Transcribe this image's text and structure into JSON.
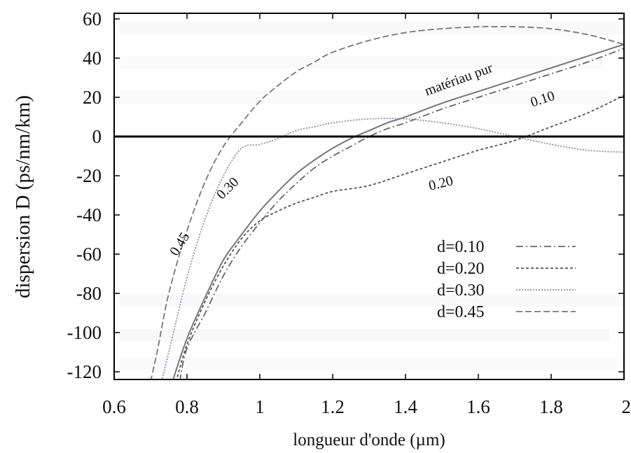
{
  "chart_data": {
    "type": "line",
    "title": "",
    "xlabel": "longueur d'onde (µm)",
    "ylabel": "dispersion D (ps/nm/km)",
    "xlim": [
      0.6,
      2.0
    ],
    "ylim": [
      -125,
      60
    ],
    "xticks": [
      "0.6",
      "0.8",
      "1",
      "1.2",
      "1.4",
      "1.6",
      "1.8",
      "2"
    ],
    "xtick_values": [
      0.6,
      0.8,
      1.0,
      1.2,
      1.4,
      1.6,
      1.8,
      2.0
    ],
    "yticks": [
      "60",
      "40",
      "20",
      "0",
      "-20",
      "-40",
      "-60",
      "-80",
      "-100",
      "-120"
    ],
    "ytick_values": [
      60,
      40,
      20,
      0,
      -20,
      -40,
      -60,
      -80,
      -100,
      -120
    ],
    "grid": false,
    "legend_position": "bottom-right",
    "zero_line": true,
    "series": [
      {
        "name": "matériau pur",
        "style": "solid",
        "color": "#777777",
        "x": [
          0.76,
          0.8,
          0.85,
          0.9,
          0.95,
          1.0,
          1.05,
          1.1,
          1.15,
          1.2,
          1.25,
          1.3,
          1.35,
          1.4,
          1.5,
          1.6,
          1.7,
          1.8,
          1.9,
          2.0
        ],
        "y": [
          -125,
          -103,
          -82,
          -63,
          -50,
          -38,
          -28,
          -19,
          -12,
          -6,
          -1,
          3,
          7,
          10,
          17,
          23,
          29,
          35,
          41,
          47
        ]
      },
      {
        "name": "d=0.10",
        "style": "dashdot",
        "color": "#666666",
        "x": [
          0.78,
          0.8,
          0.85,
          0.9,
          0.95,
          1.0,
          1.05,
          1.1,
          1.15,
          1.2,
          1.25,
          1.3,
          1.35,
          1.4,
          1.5,
          1.6,
          1.7,
          1.8,
          1.9,
          2.0
        ],
        "y": [
          -125,
          -108,
          -90,
          -71,
          -56,
          -44,
          -33,
          -24,
          -16,
          -10,
          -5,
          0,
          4,
          7,
          14,
          20,
          26,
          32,
          38,
          45
        ]
      },
      {
        "name": "d=0.20",
        "style": "dotted",
        "color": "#555555",
        "x": [
          0.77,
          0.8,
          0.85,
          0.9,
          0.95,
          1.0,
          1.05,
          1.1,
          1.15,
          1.2,
          1.3,
          1.4,
          1.5,
          1.6,
          1.7,
          1.8,
          1.9,
          2.0
        ],
        "y": [
          -125,
          -106,
          -84,
          -66,
          -52,
          -43,
          -38,
          -34,
          -31,
          -28,
          -25,
          -19,
          -13,
          -7,
          -2,
          5,
          12,
          21
        ]
      },
      {
        "name": "d=0.30",
        "style": "fine-dotted",
        "color": "#8a8fa8",
        "x": [
          0.73,
          0.75,
          0.8,
          0.85,
          0.9,
          0.95,
          1.0,
          1.05,
          1.1,
          1.15,
          1.2,
          1.3,
          1.4,
          1.5,
          1.6,
          1.7,
          1.8,
          1.9,
          2.0
        ],
        "y": [
          -125,
          -110,
          -72,
          -42,
          -20,
          -6,
          -4,
          -1,
          3,
          5,
          7,
          9,
          9,
          7,
          4,
          0,
          -4,
          -7,
          -8
        ]
      },
      {
        "name": "d=0.45",
        "style": "dashed",
        "color": "#777777",
        "x": [
          0.7,
          0.72,
          0.75,
          0.8,
          0.85,
          0.9,
          0.95,
          1.0,
          1.05,
          1.1,
          1.15,
          1.2,
          1.3,
          1.4,
          1.5,
          1.6,
          1.65,
          1.7,
          1.8,
          1.9,
          2.0
        ],
        "y": [
          -125,
          -108,
          -80,
          -48,
          -23,
          -5,
          7,
          18,
          26,
          33,
          38,
          43,
          49,
          53,
          55,
          56,
          56,
          56,
          55,
          52,
          47
        ]
      }
    ],
    "legend_entries": [
      "d=0.10",
      "d=0.20",
      "d=0.30",
      "d=0.45"
    ],
    "annotations": [
      {
        "text": "matériau pur",
        "x": 1.55,
        "y": 27,
        "angle": -20
      },
      {
        "text": "0.10",
        "x": 1.78,
        "y": 17,
        "angle": -18
      },
      {
        "text": "0.20",
        "x": 1.5,
        "y": -26,
        "angle": -14
      },
      {
        "text": "0.30",
        "x": 0.92,
        "y": -28,
        "angle": -45
      },
      {
        "text": "0.45",
        "x": 0.79,
        "y": -56,
        "angle": -58
      }
    ]
  }
}
